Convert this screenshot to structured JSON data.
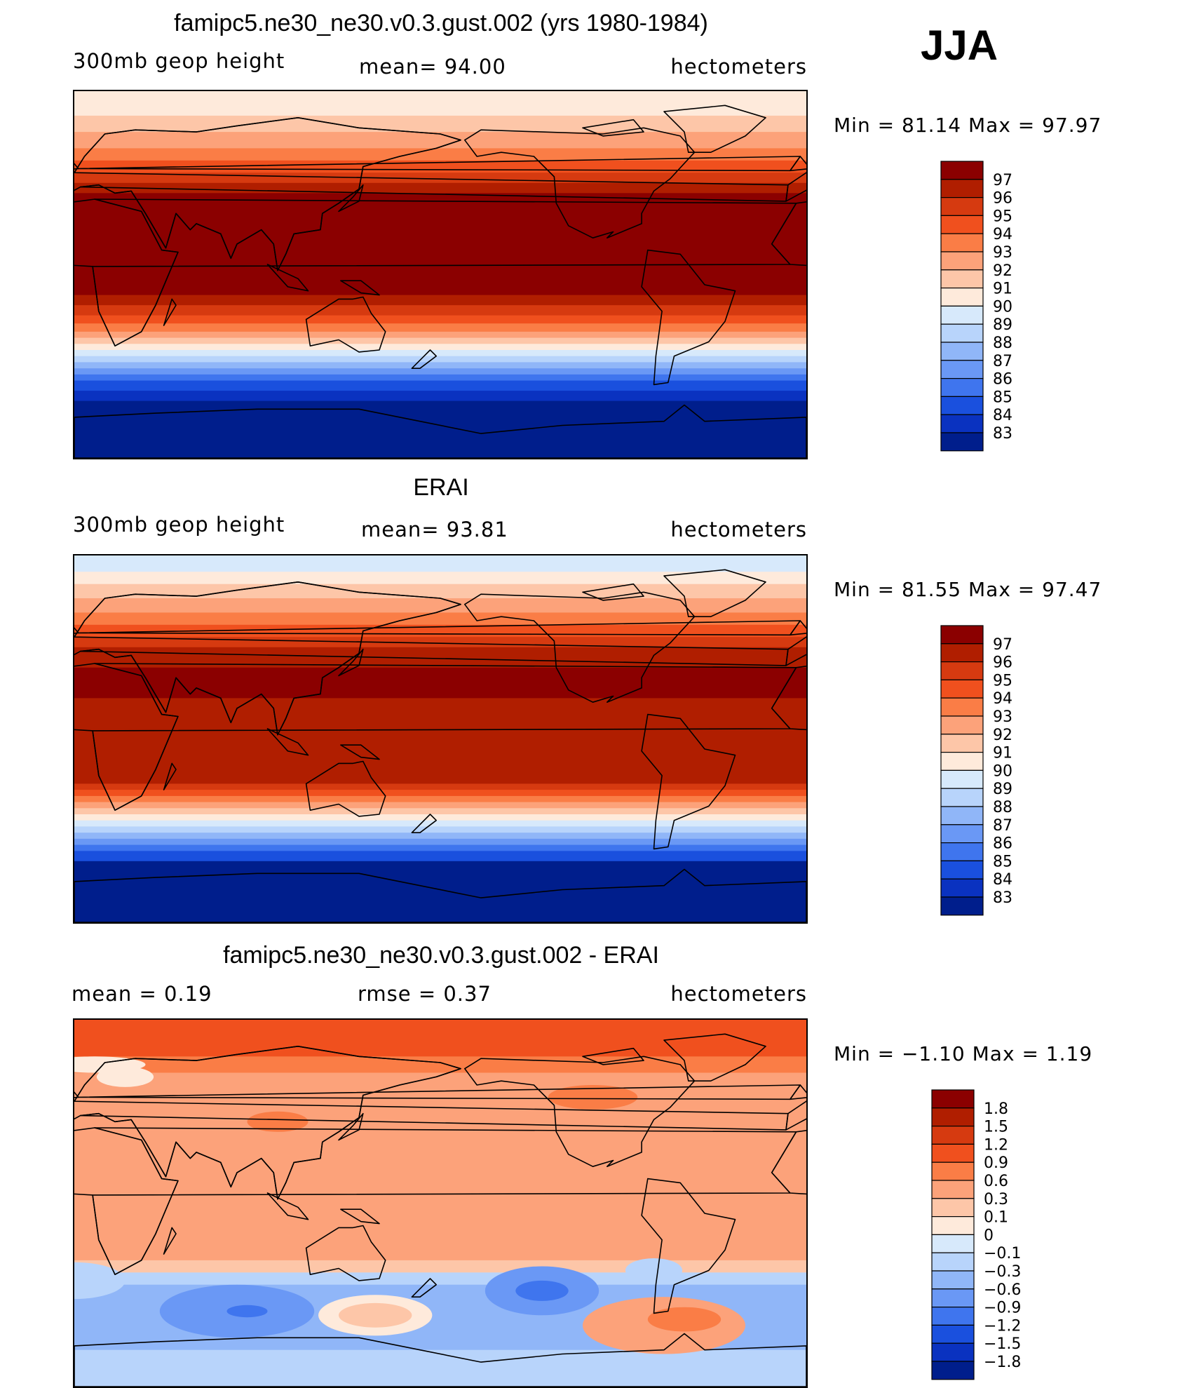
{
  "season": "JJA",
  "chart_data": [
    {
      "type": "heatmap",
      "title": "famipc5.ne30_ne30.v0.3.gust.002 (yrs 1980-1984)",
      "variable": "300mb  geop  height",
      "stat_text": "mean=   94.00",
      "units": "hectometers",
      "minmax_text": "Min  =    81.14  Max  =    97.97",
      "min": 81.14,
      "max": 97.97,
      "levels": [
        "97",
        "96",
        "95",
        "94",
        "93",
        "92",
        "91",
        "90",
        "89",
        "88",
        "87",
        "86",
        "85",
        "84",
        "83"
      ],
      "colors": [
        "#8b0000",
        "#b01e00",
        "#d63a10",
        "#f0501e",
        "#fa7d46",
        "#fca27a",
        "#fdc6a8",
        "#feeadb",
        "#d7e9fb",
        "#b8d4fb",
        "#90b6f8",
        "#6a98f5",
        "#3f75ee",
        "#1a50de",
        "#0a32c0",
        "#001e8c"
      ],
      "bands": [
        {
          "lat": [
            90,
            78
          ],
          "value": 90
        },
        {
          "lat": [
            78,
            70
          ],
          "value": 91
        },
        {
          "lat": [
            70,
            62
          ],
          "value": 92
        },
        {
          "lat": [
            62,
            56
          ],
          "value": 93
        },
        {
          "lat": [
            56,
            50
          ],
          "value": 94
        },
        {
          "lat": [
            50,
            45
          ],
          "value": 95
        },
        {
          "lat": [
            45,
            40
          ],
          "value": 96
        },
        {
          "lat": [
            40,
            -10
          ],
          "value": 97
        },
        {
          "lat": [
            -10,
            -15
          ],
          "value": 96
        },
        {
          "lat": [
            -15,
            -20
          ],
          "value": 95
        },
        {
          "lat": [
            -20,
            -24
          ],
          "value": 94
        },
        {
          "lat": [
            -24,
            -28
          ],
          "value": 93
        },
        {
          "lat": [
            -28,
            -31
          ],
          "value": 92
        },
        {
          "lat": [
            -31,
            -34
          ],
          "value": 91
        },
        {
          "lat": [
            -34,
            -37
          ],
          "value": 90
        },
        {
          "lat": [
            -37,
            -40
          ],
          "value": 89
        },
        {
          "lat": [
            -40,
            -43
          ],
          "value": 88
        },
        {
          "lat": [
            -43,
            -46
          ],
          "value": 87
        },
        {
          "lat": [
            -46,
            -49
          ],
          "value": 86
        },
        {
          "lat": [
            -49,
            -52
          ],
          "value": 85
        },
        {
          "lat": [
            -52,
            -57
          ],
          "value": 84
        },
        {
          "lat": [
            -57,
            -62
          ],
          "value": 83
        },
        {
          "lat": [
            -62,
            -90
          ],
          "value": 82
        }
      ]
    },
    {
      "type": "heatmap",
      "title": "ERAI",
      "variable": "300mb  geop  height",
      "stat_text": "mean=   93.81",
      "units": "hectometers",
      "minmax_text": "Min  =    81.55  Max  =    97.47",
      "min": 81.55,
      "max": 97.47,
      "levels": [
        "97",
        "96",
        "95",
        "94",
        "93",
        "92",
        "91",
        "90",
        "89",
        "88",
        "87",
        "86",
        "85",
        "84",
        "83"
      ],
      "colors": [
        "#8b0000",
        "#b01e00",
        "#d63a10",
        "#f0501e",
        "#fa7d46",
        "#fca27a",
        "#fdc6a8",
        "#feeadb",
        "#d7e9fb",
        "#b8d4fb",
        "#90b6f8",
        "#6a98f5",
        "#3f75ee",
        "#1a50de",
        "#0a32c0",
        "#001e8c"
      ],
      "bands": [
        {
          "lat": [
            90,
            82
          ],
          "value": 89
        },
        {
          "lat": [
            82,
            76
          ],
          "value": 90
        },
        {
          "lat": [
            76,
            69
          ],
          "value": 91
        },
        {
          "lat": [
            69,
            62
          ],
          "value": 92
        },
        {
          "lat": [
            62,
            56
          ],
          "value": 93
        },
        {
          "lat": [
            56,
            50
          ],
          "value": 94
        },
        {
          "lat": [
            50,
            45
          ],
          "value": 95
        },
        {
          "lat": [
            45,
            35
          ],
          "value": 96
        },
        {
          "lat": [
            35,
            20
          ],
          "value": 97
        },
        {
          "lat": [
            20,
            -22
          ],
          "value": 96
        },
        {
          "lat": [
            -22,
            -25
          ],
          "value": 95
        },
        {
          "lat": [
            -25,
            -28
          ],
          "value": 94
        },
        {
          "lat": [
            -28,
            -31
          ],
          "value": 93
        },
        {
          "lat": [
            -31,
            -34
          ],
          "value": 92
        },
        {
          "lat": [
            -34,
            -37
          ],
          "value": 91
        },
        {
          "lat": [
            -37,
            -40
          ],
          "value": 90
        },
        {
          "lat": [
            -40,
            -43
          ],
          "value": 89
        },
        {
          "lat": [
            -43,
            -46
          ],
          "value": 88
        },
        {
          "lat": [
            -46,
            -49
          ],
          "value": 87
        },
        {
          "lat": [
            -49,
            -52
          ],
          "value": 86
        },
        {
          "lat": [
            -52,
            -55
          ],
          "value": 85
        },
        {
          "lat": [
            -55,
            -60
          ],
          "value": 84
        },
        {
          "lat": [
            -60,
            -90
          ],
          "value": 82
        }
      ]
    },
    {
      "type": "heatmap",
      "title": "famipc5.ne30_ne30.v0.3.gust.002 - ERAI",
      "variable": "mean  =      0.19",
      "stat_text": "rmse  =      0.37",
      "units": "hectometers",
      "minmax_text": "Min  =    −1.10  Max  =      1.19",
      "min": -1.1,
      "max": 1.19,
      "levels": [
        "1.8",
        "1.5",
        "1.2",
        "0.9",
        "0.6",
        "0.3",
        "0.1",
        "0",
        "−0.1",
        "−0.3",
        "−0.6",
        "−0.9",
        "−1.2",
        "−1.5",
        "−1.8"
      ],
      "colors": [
        "#8b0000",
        "#b01e00",
        "#d63a10",
        "#f0501e",
        "#fa7d46",
        "#fca27a",
        "#fdc6a8",
        "#feeadb",
        "#d7e9fb",
        "#b8d4fb",
        "#90b6f8",
        "#6a98f5",
        "#3f75ee",
        "#1a50de",
        "#0a32c0",
        "#001e8c"
      ],
      "bands": [
        {
          "lat": [
            90,
            72
          ],
          "value": 1.0
        },
        {
          "lat": [
            72,
            64
          ],
          "value": 0.7
        },
        {
          "lat": [
            64,
            -28
          ],
          "value": 0.4
        },
        {
          "lat": [
            -28,
            -34
          ],
          "value": 0.2
        },
        {
          "lat": [
            -34,
            -40
          ],
          "value": -0.2
        },
        {
          "lat": [
            -40,
            -72
          ],
          "value": -0.4
        },
        {
          "lat": [
            -72,
            -90
          ],
          "value": -0.2
        }
      ],
      "blobs": [
        {
          "lon": 100,
          "lat": 40,
          "rx": 15,
          "ry": 5,
          "value": 0.7
        },
        {
          "lon": 25,
          "lat": 62,
          "rx": 14,
          "ry": 5,
          "value": 0.05
        },
        {
          "lon": 255,
          "lat": 52,
          "rx": 22,
          "ry": 6,
          "value": 0.7
        },
        {
          "lon": 230,
          "lat": -43,
          "rx": 28,
          "ry": 12,
          "value": -0.7
        },
        {
          "lon": 230,
          "lat": -43,
          "rx": 13,
          "ry": 5,
          "value": -1.0
        },
        {
          "lon": 80,
          "lat": -53,
          "rx": 38,
          "ry": 13,
          "value": -0.7
        },
        {
          "lon": 85,
          "lat": -53,
          "rx": 10,
          "ry": 3,
          "value": -1.0
        },
        {
          "lon": 148,
          "lat": -55,
          "rx": 28,
          "ry": 10,
          "value": 0.05
        },
        {
          "lon": 148,
          "lat": -55,
          "rx": 18,
          "ry": 6,
          "value": 0.2
        },
        {
          "lon": 290,
          "lat": -60,
          "rx": 40,
          "ry": 14,
          "value": 0.4
        },
        {
          "lon": 300,
          "lat": -57,
          "rx": 18,
          "ry": 6,
          "value": 0.7
        },
        {
          "lon": 0,
          "lat": -38,
          "rx": 25,
          "ry": 9,
          "value": -0.2
        },
        {
          "lon": 285,
          "lat": -33,
          "rx": 14,
          "ry": 6,
          "value": -0.2
        },
        {
          "lon": 10,
          "lat": 68,
          "rx": 25,
          "ry": 4,
          "value": 0.05
        }
      ]
    }
  ]
}
